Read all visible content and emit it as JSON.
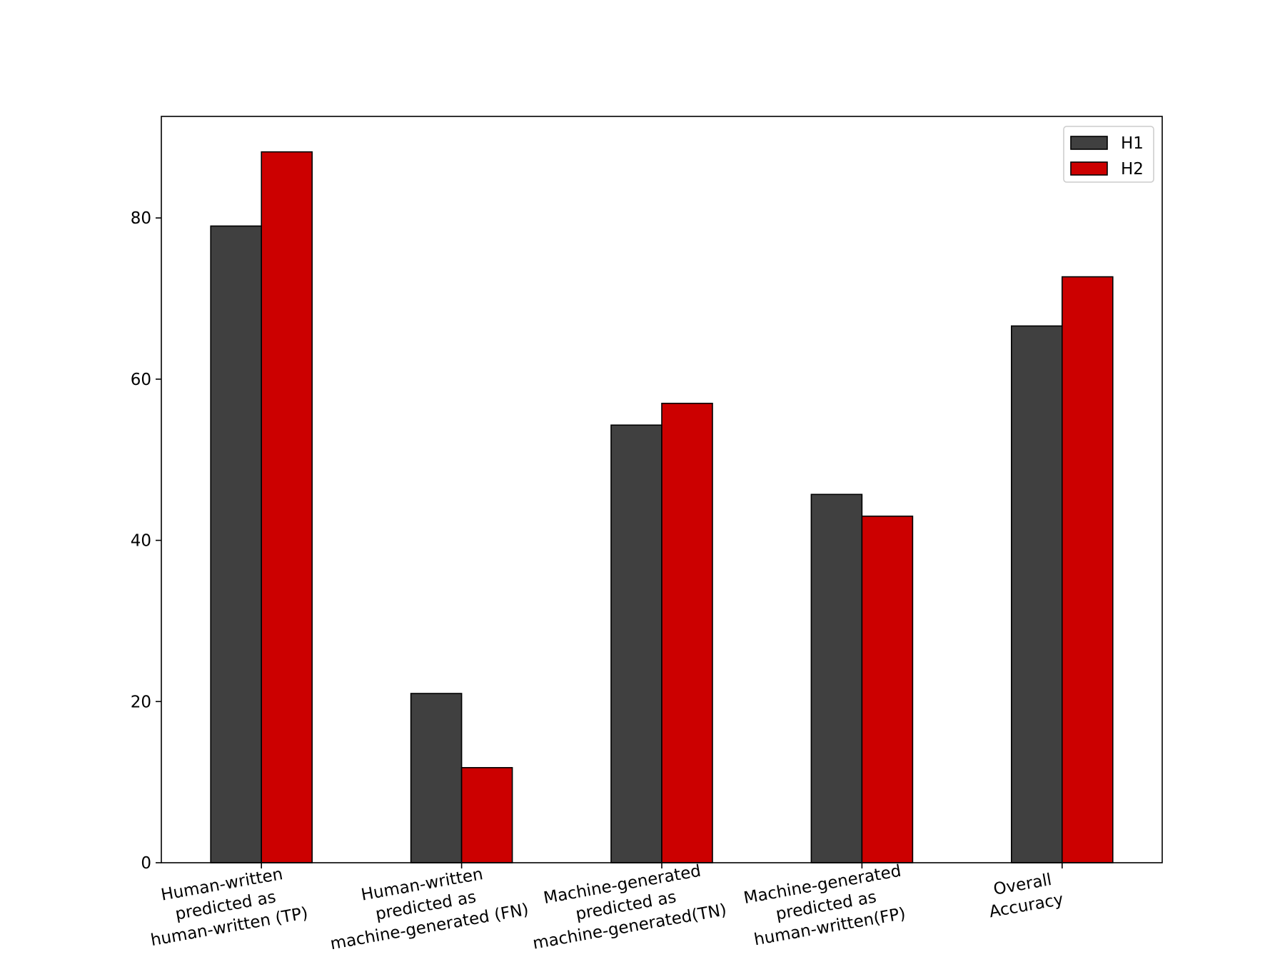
{
  "chart_data": {
    "type": "bar",
    "categories": [
      [
        "Human-written",
        "predicted as",
        "human-written (TP)"
      ],
      [
        "Human-written",
        "predicted as",
        "machine-generated (FN)"
      ],
      [
        "Machine-generated",
        "predicted as",
        "machine-generated(TN)"
      ],
      [
        "Machine-generated",
        "predicted as",
        "human-written(FP)"
      ],
      [
        "Overall",
        "Accuracy"
      ]
    ],
    "series": [
      {
        "name": "H1",
        "color": "#404040",
        "values": [
          79.0,
          21.0,
          54.3,
          45.7,
          66.6
        ]
      },
      {
        "name": "H2",
        "color": "#cc0000",
        "values": [
          88.2,
          11.8,
          57.0,
          43.0,
          72.7
        ]
      }
    ],
    "yticks": [
      "0",
      "20",
      "40",
      "60",
      "80"
    ],
    "ylim": [
      0,
      92.6
    ],
    "grid": false,
    "legend_position": "top-right",
    "title": "",
    "xlabel": "",
    "ylabel": ""
  }
}
